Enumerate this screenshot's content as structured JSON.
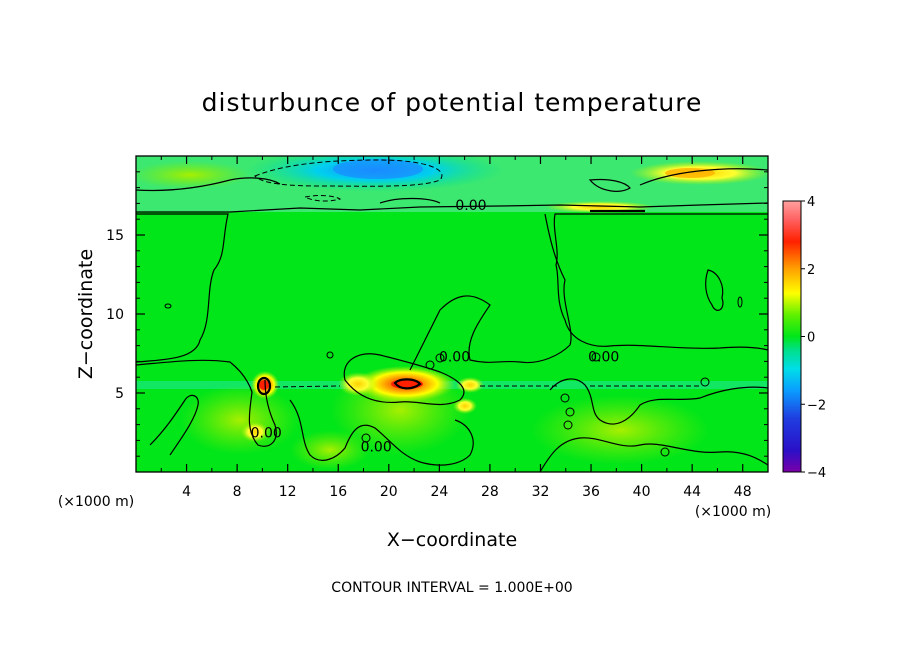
{
  "chart_data": {
    "type": "heatmap",
    "title": "disturbunce of potential temperature",
    "xlabel": "X−coordinate",
    "ylabel": "Z−coordinate",
    "x_unit_left": "(×1000 m)",
    "x_unit_right": "(×1000 m)",
    "xlim": [
      0,
      50
    ],
    "ylim": [
      0,
      20
    ],
    "x_ticks": [
      4,
      8,
      12,
      16,
      20,
      24,
      28,
      32,
      36,
      40,
      44,
      48
    ],
    "x_tick_labels": [
      "4",
      "8",
      "12",
      "16",
      "20",
      "24",
      "28",
      "32",
      "36",
      "40",
      "44",
      "48"
    ],
    "y_ticks": [
      5,
      10,
      15
    ],
    "y_tick_labels": [
      "5",
      "10",
      "15"
    ],
    "colorbar": {
      "range": [
        -4,
        4
      ],
      "ticks": [
        4,
        2,
        0,
        -2,
        -4
      ],
      "tick_labels": [
        "4",
        "2",
        "0",
        "−2",
        "−4"
      ],
      "colors": [
        "#7a00a8",
        "#1f1fd6",
        "#0a8cff",
        "#00d6e8",
        "#00e060",
        "#00e619",
        "#ffff00",
        "#ffa000",
        "#ff2000",
        "#ff8c8c"
      ]
    },
    "contour_labels": [
      {
        "text": "0.00",
        "x": 26.5,
        "y": 16.9
      },
      {
        "text": "0.00",
        "x": 25.2,
        "y": 7.3
      },
      {
        "text": "0.00",
        "x": 37.0,
        "y": 7.3
      },
      {
        "text": "0.00",
        "x": 10.3,
        "y": 2.5
      },
      {
        "text": "0.00",
        "x": 19.0,
        "y": 1.6
      }
    ],
    "features": [
      {
        "kind": "warm",
        "x": 21.3,
        "y": 5.5,
        "value": 2.6
      },
      {
        "kind": "warm",
        "x": 9.8,
        "y": 5.4,
        "value": 2.9
      },
      {
        "kind": "warm",
        "x": 9.3,
        "y": 2.4,
        "value": 1.6
      },
      {
        "kind": "warm",
        "x": 44.2,
        "y": 18.6,
        "value": 1.4
      },
      {
        "kind": "warm",
        "x": 38.5,
        "y": 16.5,
        "value": 1.2
      },
      {
        "kind": "cool",
        "x": 18.8,
        "y": 19.0,
        "value": -1.3
      },
      {
        "kind": "cool",
        "x": 28.0,
        "y": 5.4,
        "value": -0.7
      }
    ],
    "grid": false,
    "legend": "right"
  },
  "footer": "CONTOUR INTERVAL = 1.000E+00"
}
